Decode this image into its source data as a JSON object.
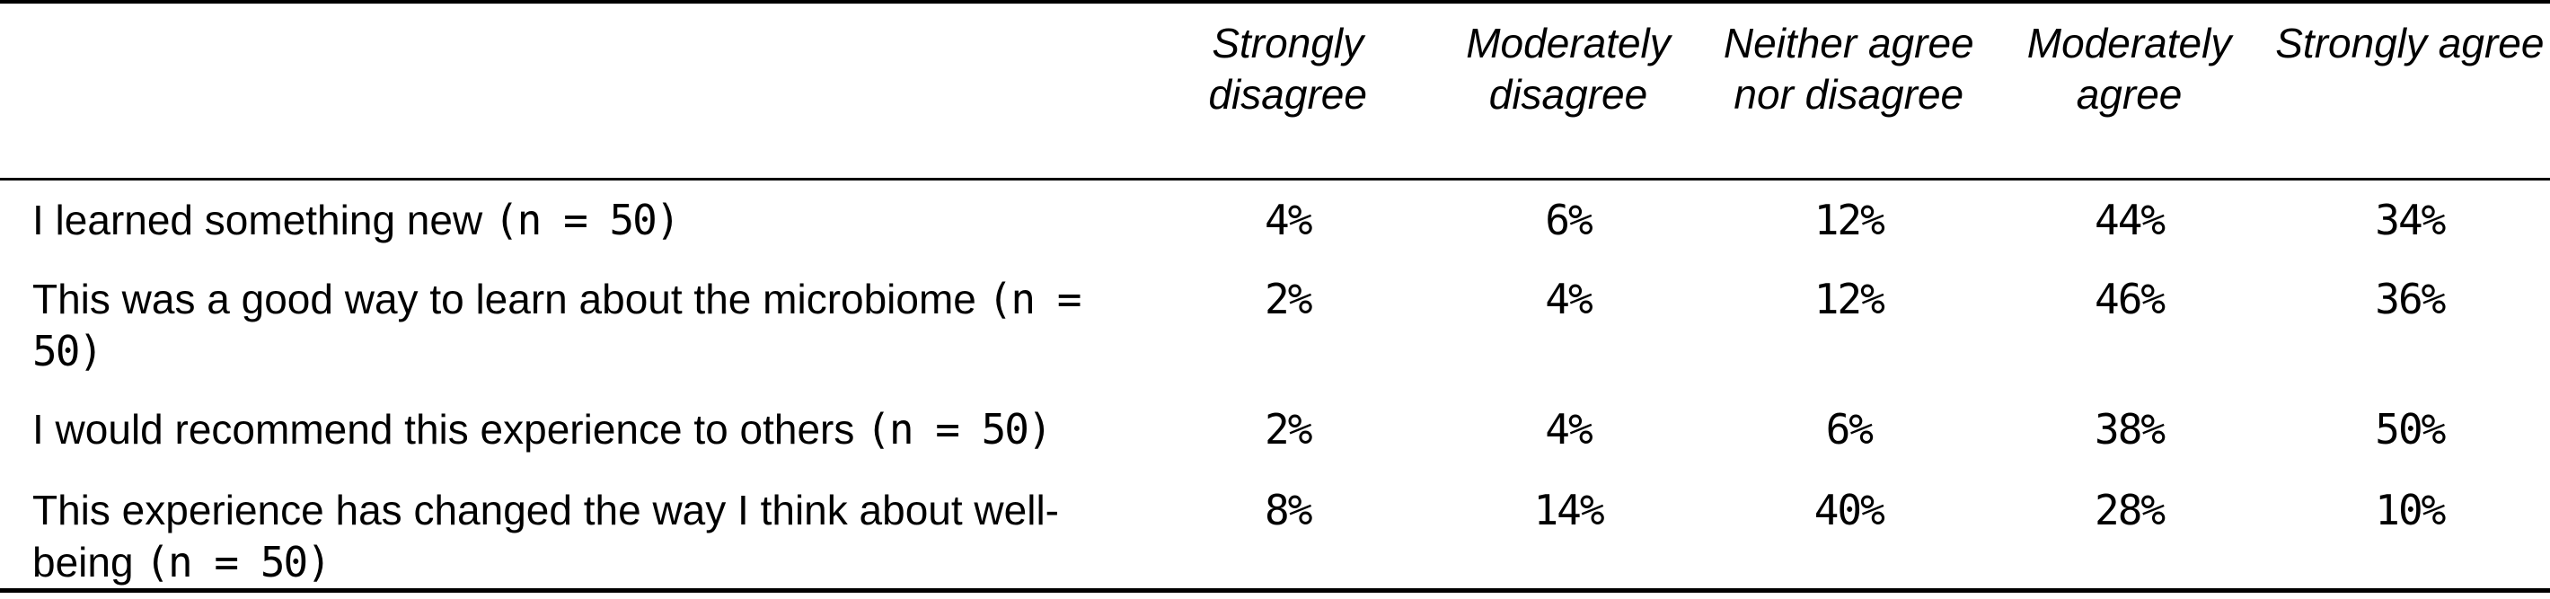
{
  "table": {
    "columns": [
      "Strongly disagree",
      "Moderately disagree",
      "Neither agree nor disagree",
      "Moderately agree",
      "Strongly agree"
    ],
    "rows": [
      {
        "question": "I learned something new",
        "n": "(n = 50)",
        "values": [
          "4%",
          "6%",
          "12%",
          "44%",
          "34%"
        ]
      },
      {
        "question": "This was a good way to learn about the microbiome",
        "n": "(n = 50)",
        "values": [
          "2%",
          "4%",
          "12%",
          "46%",
          "36%"
        ]
      },
      {
        "question": "I would recommend this experience to others",
        "n": "(n = 50)",
        "values": [
          "2%",
          "4%",
          "6%",
          "38%",
          "50%"
        ]
      },
      {
        "question": "This experience has changed the way I think about well-being",
        "n": "(n = 50)",
        "values": [
          "8%",
          "14%",
          "40%",
          "28%",
          "10%"
        ]
      }
    ]
  }
}
